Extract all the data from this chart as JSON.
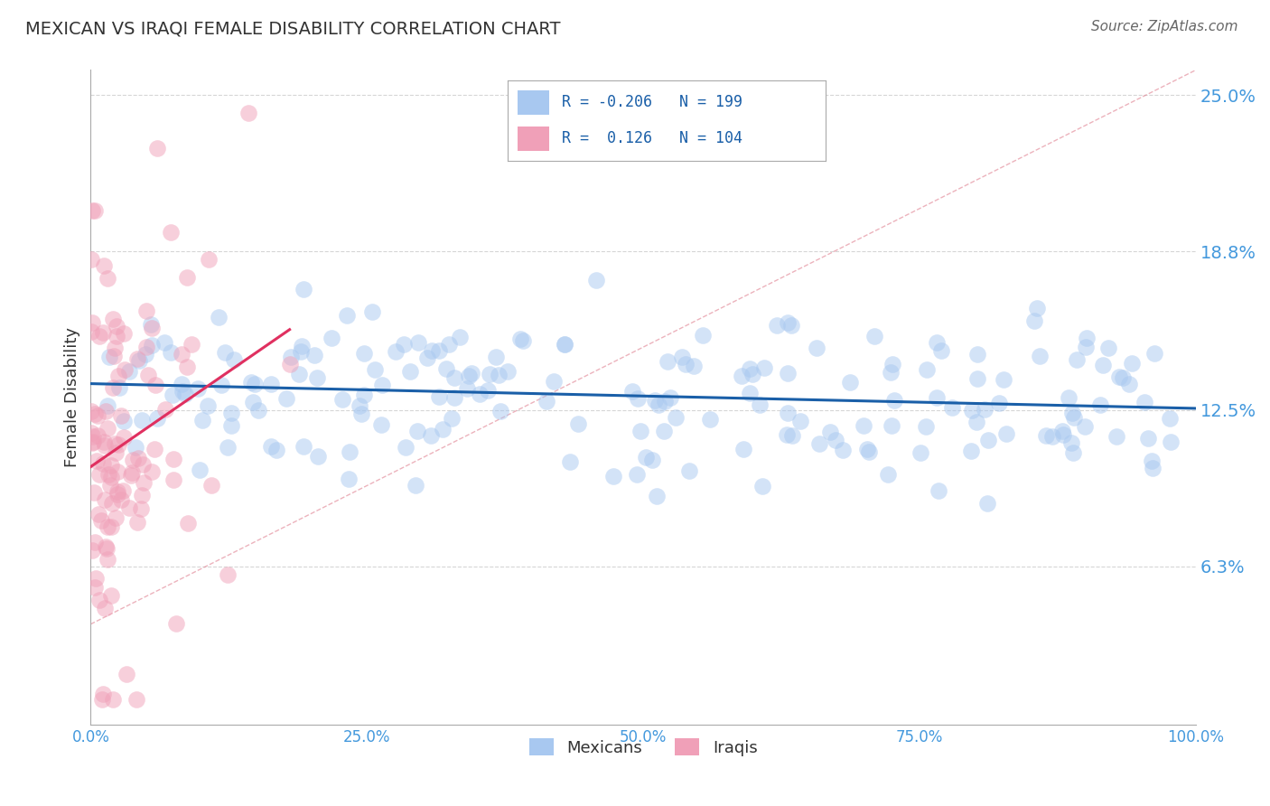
{
  "title": "MEXICAN VS IRAQI FEMALE DISABILITY CORRELATION CHART",
  "source": "Source: ZipAtlas.com",
  "ylabel": "Female Disability",
  "legend_blue_r": -0.206,
  "legend_pink_r": 0.126,
  "legend_blue_n": 199,
  "legend_pink_n": 104,
  "xlim": [
    0.0,
    1.0
  ],
  "ylim": [
    0.0,
    0.26
  ],
  "yticks": [
    0.063,
    0.125,
    0.188,
    0.25
  ],
  "ytick_labels": [
    "6.3%",
    "12.5%",
    "18.8%",
    "25.0%"
  ],
  "xticks": [
    0.0,
    0.25,
    0.5,
    0.75,
    1.0
  ],
  "xtick_labels": [
    "0.0%",
    "25.0%",
    "50.0%",
    "75.0%",
    "100.0%"
  ],
  "blue_color": "#a8c8f0",
  "pink_color": "#f0a0b8",
  "blue_line_color": "#1a5fa8",
  "pink_line_color": "#e03060",
  "dashed_line_color": "#e08090",
  "title_color": "#333333",
  "axis_label_color": "#333333",
  "tick_color": "#4499dd",
  "grid_color": "#cccccc",
  "source_color": "#666666",
  "background_color": "#ffffff",
  "seed": 42
}
